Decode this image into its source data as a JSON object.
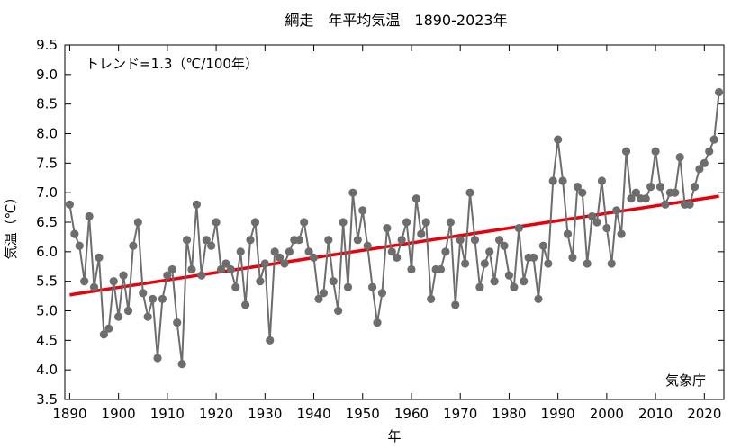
{
  "chart_data": {
    "type": "line",
    "title": "網走　年平均気温　1890-2023年",
    "xlabel": "年",
    "ylabel": "気温（℃）",
    "annotation": "トレンド=1.3（℃/100年）",
    "credit": "気象庁",
    "xlim": [
      1889,
      2024
    ],
    "ylim": [
      3.5,
      9.5
    ],
    "x_ticks": [
      1890,
      1900,
      1910,
      1920,
      1930,
      1940,
      1950,
      1960,
      1970,
      1980,
      1990,
      2000,
      2010,
      2020
    ],
    "y_ticks": [
      "3.5",
      "4.0",
      "4.5",
      "5.0",
      "5.5",
      "6.0",
      "6.5",
      "7.0",
      "7.5",
      "8.0",
      "8.5",
      "9.0",
      "9.5"
    ],
    "grid": false,
    "series": [
      {
        "x": [
          1890,
          1891,
          1892,
          1893,
          1894,
          1895,
          1896,
          1897,
          1898,
          1899,
          1900,
          1901,
          1902,
          1903,
          1904,
          1905,
          1906,
          1907,
          1908,
          1909,
          1910,
          1911,
          1912,
          1913,
          1914,
          1915,
          1916,
          1917,
          1918,
          1919,
          1920,
          1921,
          1922,
          1923,
          1924,
          1925,
          1926,
          1927,
          1928,
          1929,
          1930,
          1931,
          1932,
          1933,
          1934,
          1935,
          1936,
          1937,
          1938,
          1939,
          1940,
          1941,
          1942,
          1943,
          1944,
          1945,
          1946,
          1947,
          1948,
          1949,
          1950,
          1951,
          1952,
          1953,
          1954,
          1955,
          1956,
          1957,
          1958,
          1959,
          1960,
          1961,
          1962,
          1963,
          1964,
          1965,
          1966,
          1967,
          1968,
          1969,
          1970,
          1971,
          1972,
          1973,
          1974,
          1975,
          1976,
          1977,
          1978,
          1979,
          1980,
          1981,
          1982,
          1983,
          1984,
          1985,
          1986,
          1987,
          1988,
          1989,
          1990,
          1991,
          1992,
          1993,
          1994,
          1995,
          1996,
          1997,
          1998,
          1999,
          2000,
          2001,
          2002,
          2003,
          2004,
          2005,
          2006,
          2007,
          2008,
          2009,
          2010,
          2011,
          2012,
          2013,
          2014,
          2015,
          2016,
          2017,
          2018,
          2019,
          2020,
          2021,
          2022,
          2023
        ],
        "values": [
          6.8,
          6.3,
          6.1,
          5.5,
          6.6,
          5.4,
          5.9,
          4.6,
          4.7,
          5.5,
          4.9,
          5.6,
          5.0,
          6.1,
          6.5,
          5.3,
          4.9,
          5.2,
          4.2,
          5.2,
          5.6,
          5.7,
          4.8,
          4.1,
          6.2,
          5.7,
          6.8,
          5.6,
          6.2,
          6.1,
          6.5,
          5.7,
          5.8,
          5.7,
          5.4,
          6.0,
          5.1,
          6.2,
          6.5,
          5.5,
          5.8,
          4.5,
          6.0,
          5.9,
          5.8,
          6.0,
          6.2,
          6.2,
          6.5,
          6.0,
          5.9,
          5.2,
          5.3,
          6.2,
          5.5,
          5.0,
          6.5,
          5.4,
          7.0,
          6.2,
          6.7,
          6.1,
          5.4,
          4.8,
          5.3,
          6.4,
          6.0,
          5.9,
          6.2,
          6.5,
          5.7,
          6.9,
          6.3,
          6.5,
          5.2,
          5.7,
          5.7,
          6.0,
          6.5,
          5.1,
          6.2,
          5.8,
          7.0,
          6.2,
          5.4,
          5.8,
          6.0,
          5.5,
          6.2,
          6.1,
          5.6,
          5.4,
          6.4,
          5.5,
          5.9,
          5.9,
          5.2,
          6.1,
          5.8,
          7.2,
          7.9,
          7.2,
          6.3,
          5.9,
          7.1,
          7.0,
          5.8,
          6.6,
          6.5,
          7.2,
          6.4,
          5.8,
          6.7,
          6.3,
          7.7,
          6.9,
          7.0,
          6.9,
          6.9,
          7.1,
          7.7,
          7.1,
          6.8,
          7.0,
          7.0,
          7.6,
          6.8,
          6.8,
          7.1,
          7.4,
          7.5,
          7.7,
          7.9,
          8.7
        ]
      },
      {
        "name": "trend",
        "x": [
          1890,
          2023
        ],
        "values": [
          5.27,
          6.94
        ]
      }
    ],
    "colors": {
      "series": "#6d6d6d",
      "trend": "#e8000b",
      "frame": "#000000"
    }
  }
}
